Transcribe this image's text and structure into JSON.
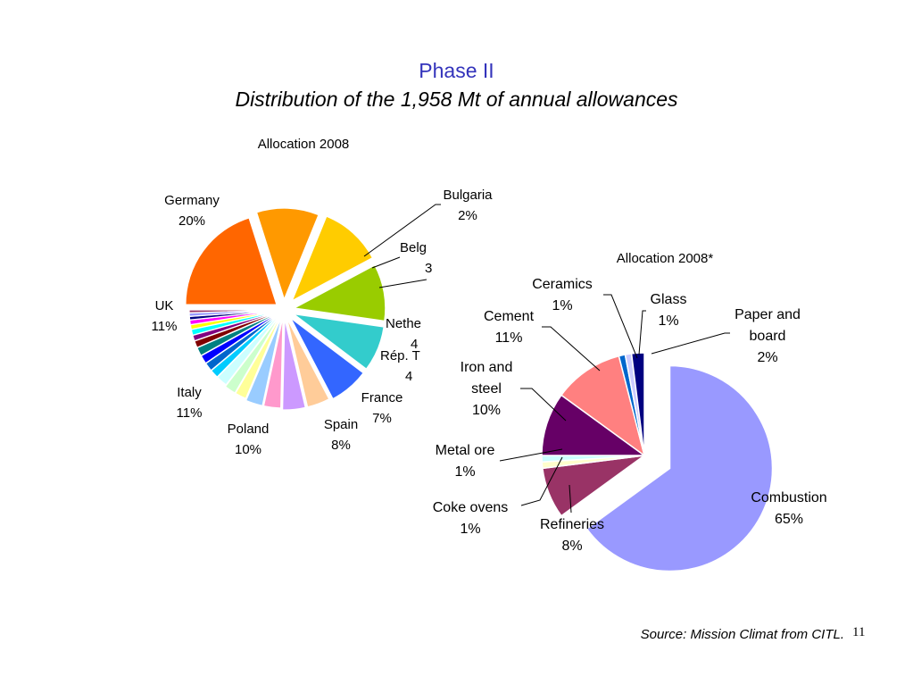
{
  "slide": {
    "title": "Phase II",
    "subtitle": "Distribution of the 1,958 Mt of annual allowances",
    "source": "Source: Mission Climat from CITL.",
    "page_number": "11"
  },
  "chart_data": [
    {
      "type": "pie",
      "title": "Allocation 2008",
      "unit": "%",
      "slices": [
        {
          "label": "Germany",
          "value": 20,
          "pct_text": "20%",
          "color": "#ff6600"
        },
        {
          "label": "UK",
          "value": 11,
          "pct_text": "11%",
          "color": "#ff9900"
        },
        {
          "label": "Italy",
          "value": 11,
          "pct_text": "11%",
          "color": "#ffcc00"
        },
        {
          "label": "Poland",
          "value": 10,
          "pct_text": "10%",
          "color": "#99cc00"
        },
        {
          "label": "Spain",
          "value": 8,
          "pct_text": "8%",
          "color": "#33cccc"
        },
        {
          "label": "France",
          "value": 7,
          "pct_text": "7%",
          "color": "#3366ff"
        },
        {
          "label": "Rép. T",
          "value": 4,
          "pct_text": "4",
          "color": "#ffcc99"
        },
        {
          "label": "Nethe",
          "value": 4,
          "pct_text": "4",
          "color": "#cc99ff"
        },
        {
          "label": "",
          "value": 3,
          "pct_text": "",
          "color": "#ff99cc"
        },
        {
          "label": "Belg",
          "value": 3,
          "pct_text": "3",
          "color": "#99ccff"
        },
        {
          "label": "",
          "value": 2,
          "pct_text": "",
          "color": "#ffff99"
        },
        {
          "label": "Bulgaria",
          "value": 2,
          "pct_text": "2%",
          "color": "#ccffcc"
        },
        {
          "label": "",
          "value": 2,
          "pct_text": "",
          "color": "#ccffff"
        },
        {
          "label": "",
          "value": 1.5,
          "pct_text": "",
          "color": "#00ccff"
        },
        {
          "label": "",
          "value": 1.5,
          "pct_text": "",
          "color": "#0066cc"
        },
        {
          "label": "",
          "value": 1.5,
          "pct_text": "",
          "color": "#0000ff"
        },
        {
          "label": "",
          "value": 1.5,
          "pct_text": "",
          "color": "#008080"
        },
        {
          "label": "",
          "value": 1.2,
          "pct_text": "",
          "color": "#800000"
        },
        {
          "label": "",
          "value": 1,
          "pct_text": "",
          "color": "#800080"
        },
        {
          "label": "",
          "value": 1,
          "pct_text": "",
          "color": "#00ffff"
        },
        {
          "label": "",
          "value": 0.8,
          "pct_text": "",
          "color": "#ffff00"
        },
        {
          "label": "",
          "value": 0.8,
          "pct_text": "",
          "color": "#ff00ff"
        },
        {
          "label": "",
          "value": 0.6,
          "pct_text": "",
          "color": "#000080"
        },
        {
          "label": "",
          "value": 0.6,
          "pct_text": "",
          "color": "#9999ff"
        },
        {
          "label": "",
          "value": 0.5,
          "pct_text": "",
          "color": "#993366"
        }
      ]
    },
    {
      "type": "pie",
      "title": "Allocation 2008*",
      "unit": "%",
      "slices": [
        {
          "label": "Combustion",
          "value": 65,
          "pct_text": "65%",
          "color": "#9999ff"
        },
        {
          "label": "Refineries",
          "value": 8,
          "pct_text": "8%",
          "color": "#993366"
        },
        {
          "label": "Coke ovens",
          "value": 1,
          "pct_text": "1%",
          "color": "#ffffcc"
        },
        {
          "label": "Metal ore",
          "value": 1,
          "pct_text": "1%",
          "color": "#ccffff"
        },
        {
          "label": "Iron and steel",
          "value": 10,
          "pct_text": "10%",
          "color": "#660066"
        },
        {
          "label": "Cement",
          "value": 11,
          "pct_text": "11%",
          "color": "#ff8080"
        },
        {
          "label": "Ceramics",
          "value": 1,
          "pct_text": "1%",
          "color": "#0066cc"
        },
        {
          "label": "Glass",
          "value": 1,
          "pct_text": "1%",
          "color": "#ccccff"
        },
        {
          "label": "Paper and board",
          "value": 2,
          "pct_text": "2%",
          "color": "#000080"
        }
      ]
    }
  ]
}
